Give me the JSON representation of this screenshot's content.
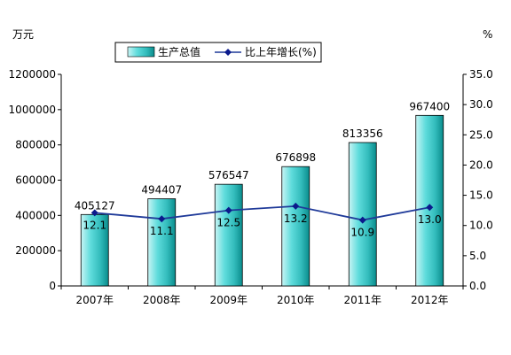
{
  "chart_data": {
    "type": "bar",
    "categories": [
      "2007年",
      "2008年",
      "2009年",
      "2010年",
      "2011年",
      "2012年"
    ],
    "series": [
      {
        "name": "生产总值",
        "type": "bar",
        "axis": "left",
        "values": [
          405127,
          494407,
          576547,
          676898,
          813356,
          967400
        ],
        "labels": [
          "405127",
          "494407",
          "576547",
          "676898",
          "813356",
          "967400"
        ]
      },
      {
        "name": "比上年增长(%)",
        "type": "line",
        "axis": "right",
        "values": [
          12.1,
          11.1,
          12.5,
          13.2,
          10.9,
          13.0
        ],
        "labels": [
          "12.1",
          "11.1",
          "12.5",
          "13.2",
          "10.9",
          "13.0"
        ]
      }
    ],
    "y_left": {
      "unit": "万元",
      "ylim": [
        0,
        1200000
      ],
      "ticks": [
        "0",
        "200000",
        "400000",
        "600000",
        "800000",
        "1000000",
        "1200000"
      ]
    },
    "y_right": {
      "unit": "%",
      "ylim": [
        0,
        35
      ],
      "ticks": [
        "0.0",
        "5.0",
        "10.0",
        "15.0",
        "20.0",
        "25.0",
        "30.0",
        "35.0"
      ]
    },
    "legend_position": "top",
    "grid": false,
    "colors": {
      "bar_light": "#c8f4f4",
      "bar_mid": "#33cccc",
      "bar_dark": "#0a8c8c",
      "line": "#1f3a99",
      "marker": "#0b1a8c"
    }
  }
}
